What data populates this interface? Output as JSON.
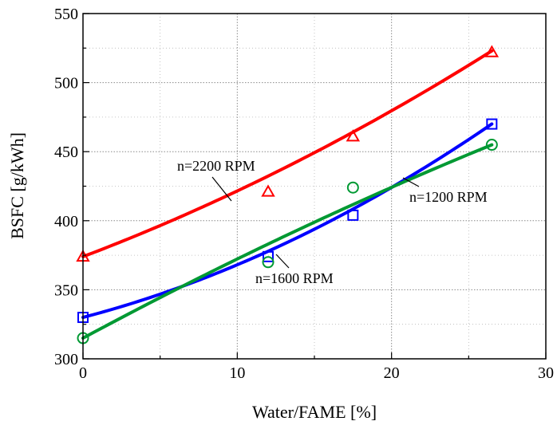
{
  "chart_data": {
    "type": "scatter",
    "title": "",
    "xlabel": "Water/FAME [%]",
    "ylabel": "BSFC [g/kWh]",
    "xlim": [
      0,
      30
    ],
    "ylim": [
      300,
      550
    ],
    "xticks": [
      "0",
      "10",
      "20",
      "30"
    ],
    "yticks": [
      "300",
      "350",
      "400",
      "450",
      "500",
      "550"
    ],
    "grid": true,
    "series": [
      {
        "name": "n=2200 RPM",
        "marker": "triangle",
        "color": "#ff0000",
        "x": [
          0,
          12,
          17.5,
          26.5
        ],
        "y": [
          374,
          421,
          461,
          522
        ],
        "fit": [
          374.0,
          4.2308,
          0.05247
        ]
      },
      {
        "name": "n=1600 RPM",
        "marker": "square",
        "color": "#0000ff",
        "x": [
          0,
          12,
          17.5,
          26.5
        ],
        "y": [
          330,
          374,
          404,
          470
        ],
        "fit": [
          330.0,
          2.9167,
          0.08938
        ]
      },
      {
        "name": "n=1200 RPM",
        "marker": "circle",
        "color": "#009933",
        "x": [
          0,
          12,
          17.5,
          26.5
        ],
        "y": [
          315,
          370,
          424,
          455
        ],
        "fit": [
          315.0,
          6.0,
          -0.0271
        ]
      }
    ],
    "annotations": [
      {
        "text": "n=2200 RPM",
        "series": 0
      },
      {
        "text": "n=1600 RPM",
        "series": 1
      },
      {
        "text": "n=1200 RPM",
        "series": 2
      }
    ]
  }
}
